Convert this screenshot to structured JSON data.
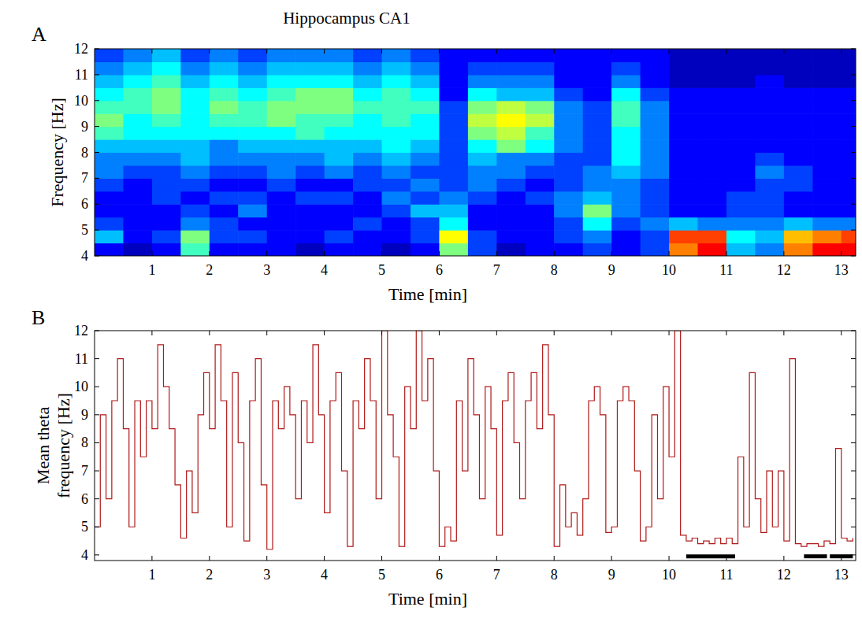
{
  "chart_data": [
    {
      "type": "heatmap",
      "panel": "A",
      "title": "Hippocampus CA1",
      "x_label": "Time [min]",
      "y_label": "Frequency [Hz]",
      "xlim": [
        0,
        13.25
      ],
      "ylim": [
        4,
        12
      ],
      "xticks": [
        1,
        2,
        3,
        4,
        5,
        6,
        7,
        8,
        9,
        10,
        11,
        12,
        13
      ],
      "yticks": [
        4,
        5,
        6,
        7,
        8,
        9,
        10,
        11,
        12
      ],
      "zlim": [
        0.2,
        1.0
      ],
      "x_bins": [
        0,
        0.5,
        1,
        1.5,
        2,
        2.5,
        3,
        3.5,
        4,
        4.5,
        5,
        5.5,
        6,
        6.5,
        7,
        7.5,
        8,
        8.5,
        9,
        9.5,
        10,
        10.5,
        11,
        11.5,
        12,
        12.5,
        13,
        13.25
      ],
      "y_bins": [
        4,
        4.5,
        5,
        5.5,
        6,
        6.5,
        7,
        7.5,
        8,
        8.5,
        9,
        9.5,
        10,
        10.5,
        11,
        11.5,
        12
      ],
      "z": [
        [
          0.3,
          0.25,
          0.3,
          0.55,
          0.3,
          0.3,
          0.3,
          0.25,
          0.3,
          0.3,
          0.25,
          0.3,
          0.6,
          0.35,
          0.25,
          0.3,
          0.3,
          0.35,
          0.3,
          0.35,
          0.8,
          0.9,
          0.45,
          0.4,
          0.8,
          0.9,
          0.9
        ],
        [
          0.45,
          0.3,
          0.35,
          0.6,
          0.35,
          0.35,
          0.3,
          0.3,
          0.35,
          0.3,
          0.3,
          0.35,
          0.7,
          0.35,
          0.3,
          0.3,
          0.35,
          0.4,
          0.3,
          0.35,
          0.85,
          0.85,
          0.5,
          0.45,
          0.75,
          0.8,
          0.85
        ],
        [
          0.35,
          0.3,
          0.3,
          0.4,
          0.35,
          0.3,
          0.3,
          0.3,
          0.3,
          0.35,
          0.3,
          0.35,
          0.5,
          0.3,
          0.3,
          0.3,
          0.35,
          0.5,
          0.35,
          0.4,
          0.45,
          0.4,
          0.4,
          0.4,
          0.45,
          0.4,
          0.4
        ],
        [
          0.3,
          0.3,
          0.3,
          0.35,
          0.3,
          0.4,
          0.3,
          0.3,
          0.3,
          0.3,
          0.35,
          0.45,
          0.45,
          0.3,
          0.3,
          0.3,
          0.4,
          0.6,
          0.4,
          0.35,
          0.3,
          0.3,
          0.35,
          0.35,
          0.3,
          0.3,
          0.3
        ],
        [
          0.3,
          0.3,
          0.35,
          0.3,
          0.35,
          0.35,
          0.3,
          0.35,
          0.35,
          0.3,
          0.4,
          0.35,
          0.4,
          0.35,
          0.3,
          0.35,
          0.4,
          0.45,
          0.4,
          0.35,
          0.3,
          0.3,
          0.35,
          0.35,
          0.3,
          0.3,
          0.3
        ],
        [
          0.35,
          0.3,
          0.35,
          0.35,
          0.3,
          0.3,
          0.35,
          0.3,
          0.3,
          0.35,
          0.35,
          0.4,
          0.35,
          0.4,
          0.35,
          0.3,
          0.35,
          0.4,
          0.4,
          0.35,
          0.3,
          0.3,
          0.3,
          0.35,
          0.35,
          0.3,
          0.3
        ],
        [
          0.4,
          0.35,
          0.35,
          0.4,
          0.35,
          0.35,
          0.4,
          0.35,
          0.4,
          0.35,
          0.4,
          0.35,
          0.35,
          0.4,
          0.4,
          0.35,
          0.35,
          0.4,
          0.45,
          0.4,
          0.3,
          0.3,
          0.3,
          0.4,
          0.35,
          0.3,
          0.3
        ],
        [
          0.4,
          0.4,
          0.4,
          0.45,
          0.4,
          0.4,
          0.4,
          0.4,
          0.45,
          0.4,
          0.45,
          0.4,
          0.35,
          0.45,
          0.4,
          0.4,
          0.35,
          0.35,
          0.5,
          0.4,
          0.3,
          0.3,
          0.3,
          0.35,
          0.3,
          0.3,
          0.3
        ],
        [
          0.45,
          0.45,
          0.45,
          0.45,
          0.4,
          0.45,
          0.45,
          0.45,
          0.45,
          0.45,
          0.5,
          0.45,
          0.35,
          0.5,
          0.6,
          0.5,
          0.4,
          0.35,
          0.5,
          0.4,
          0.3,
          0.3,
          0.3,
          0.3,
          0.3,
          0.3,
          0.3
        ],
        [
          0.55,
          0.5,
          0.5,
          0.5,
          0.5,
          0.5,
          0.5,
          0.55,
          0.5,
          0.5,
          0.5,
          0.5,
          0.35,
          0.6,
          0.65,
          0.55,
          0.4,
          0.35,
          0.5,
          0.4,
          0.3,
          0.3,
          0.3,
          0.3,
          0.3,
          0.3,
          0.3
        ],
        [
          0.6,
          0.5,
          0.55,
          0.5,
          0.55,
          0.55,
          0.6,
          0.55,
          0.55,
          0.5,
          0.55,
          0.5,
          0.35,
          0.65,
          0.7,
          0.65,
          0.4,
          0.35,
          0.55,
          0.4,
          0.3,
          0.3,
          0.3,
          0.3,
          0.3,
          0.3,
          0.3
        ],
        [
          0.55,
          0.55,
          0.6,
          0.5,
          0.6,
          0.55,
          0.6,
          0.6,
          0.6,
          0.55,
          0.55,
          0.55,
          0.35,
          0.6,
          0.65,
          0.6,
          0.4,
          0.35,
          0.55,
          0.4,
          0.3,
          0.3,
          0.3,
          0.3,
          0.3,
          0.3,
          0.3
        ],
        [
          0.5,
          0.55,
          0.6,
          0.5,
          0.55,
          0.5,
          0.55,
          0.6,
          0.6,
          0.5,
          0.55,
          0.5,
          0.3,
          0.5,
          0.45,
          0.45,
          0.35,
          0.3,
          0.5,
          0.35,
          0.3,
          0.3,
          0.3,
          0.3,
          0.3,
          0.3,
          0.3
        ],
        [
          0.45,
          0.5,
          0.55,
          0.45,
          0.5,
          0.45,
          0.5,
          0.5,
          0.5,
          0.45,
          0.5,
          0.45,
          0.3,
          0.4,
          0.4,
          0.4,
          0.3,
          0.3,
          0.4,
          0.3,
          0.25,
          0.25,
          0.25,
          0.3,
          0.25,
          0.25,
          0.25
        ],
        [
          0.4,
          0.45,
          0.5,
          0.4,
          0.45,
          0.4,
          0.45,
          0.45,
          0.45,
          0.4,
          0.45,
          0.4,
          0.3,
          0.35,
          0.35,
          0.35,
          0.3,
          0.3,
          0.35,
          0.3,
          0.25,
          0.25,
          0.25,
          0.25,
          0.25,
          0.25,
          0.25
        ],
        [
          0.35,
          0.4,
          0.45,
          0.35,
          0.4,
          0.35,
          0.4,
          0.4,
          0.4,
          0.35,
          0.4,
          0.35,
          0.3,
          0.3,
          0.3,
          0.3,
          0.3,
          0.3,
          0.3,
          0.3,
          0.25,
          0.25,
          0.25,
          0.25,
          0.25,
          0.25,
          0.25
        ]
      ]
    },
    {
      "type": "line",
      "panel": "B",
      "x_label": "Time [min]",
      "y_label": "Mean theta frequency [Hz]",
      "xlim": [
        0,
        13.25
      ],
      "ylim": [
        3.8,
        12
      ],
      "xticks": [
        1,
        2,
        3,
        4,
        5,
        6,
        7,
        8,
        9,
        10,
        11,
        12,
        13
      ],
      "yticks": [
        4,
        5,
        6,
        7,
        8,
        9,
        10,
        11,
        12
      ],
      "x": [
        0,
        0.1,
        0.2,
        0.3,
        0.4,
        0.5,
        0.6,
        0.7,
        0.8,
        0.9,
        1,
        1.1,
        1.2,
        1.3,
        1.4,
        1.5,
        1.6,
        1.7,
        1.8,
        1.9,
        2,
        2.1,
        2.2,
        2.3,
        2.4,
        2.5,
        2.6,
        2.7,
        2.8,
        2.9,
        3,
        3.1,
        3.2,
        3.3,
        3.4,
        3.5,
        3.6,
        3.7,
        3.8,
        3.9,
        4,
        4.1,
        4.2,
        4.3,
        4.4,
        4.5,
        4.6,
        4.7,
        4.8,
        4.9,
        5,
        5.1,
        5.2,
        5.3,
        5.4,
        5.5,
        5.6,
        5.7,
        5.8,
        5.9,
        6,
        6.1,
        6.2,
        6.3,
        6.4,
        6.5,
        6.6,
        6.7,
        6.8,
        6.9,
        7,
        7.1,
        7.2,
        7.3,
        7.4,
        7.5,
        7.6,
        7.7,
        7.8,
        7.9,
        8,
        8.1,
        8.2,
        8.3,
        8.4,
        8.5,
        8.6,
        8.7,
        8.8,
        8.9,
        9,
        9.1,
        9.2,
        9.3,
        9.4,
        9.5,
        9.6,
        9.7,
        9.8,
        9.9,
        10,
        10.1,
        10.2,
        10.3,
        10.4,
        10.5,
        10.6,
        10.7,
        10.8,
        10.9,
        11,
        11.1,
        11.2,
        11.3,
        11.4,
        11.5,
        11.6,
        11.7,
        11.8,
        11.9,
        12,
        12.1,
        12.2,
        12.3,
        12.4,
        12.5,
        12.6,
        12.7,
        12.8,
        12.9,
        13,
        13.1,
        13.2
      ],
      "series": [
        {
          "color": "#b01818",
          "line_style": "steps",
          "values": [
            5.0,
            9.0,
            6.0,
            9.5,
            11.0,
            8.5,
            5.0,
            9.5,
            7.5,
            9.5,
            8.5,
            11.5,
            10.0,
            8.5,
            6.5,
            4.6,
            7.0,
            5.5,
            9.0,
            10.5,
            8.5,
            11.5,
            9.5,
            5.0,
            10.5,
            8.0,
            4.5,
            9.5,
            11.0,
            6.5,
            4.2,
            9.5,
            8.5,
            10.0,
            9.0,
            6.0,
            9.5,
            8.0,
            11.5,
            9.0,
            5.5,
            9.5,
            10.5,
            7.0,
            4.3,
            9.5,
            8.5,
            11.0,
            9.5,
            6.0,
            12.0,
            9.0,
            7.5,
            4.3,
            10.0,
            8.5,
            12.0,
            9.5,
            11.0,
            7.0,
            4.3,
            5.0,
            4.5,
            9.5,
            7.0,
            11.0,
            9.0,
            6.0,
            10.0,
            8.5,
            4.7,
            9.5,
            10.5,
            8.0,
            6.0,
            9.5,
            10.5,
            8.5,
            11.5,
            9.0,
            4.3,
            6.5,
            5.0,
            5.5,
            4.7,
            6.0,
            9.5,
            10.0,
            9.0,
            4.8,
            5.0,
            9.5,
            10.0,
            9.5,
            7.0,
            4.5,
            5.0,
            9.0,
            6.0,
            10.0,
            7.5,
            12.0,
            4.7,
            4.5,
            4.6,
            4.4,
            4.5,
            4.4,
            4.6,
            4.4,
            4.6,
            4.4,
            7.5,
            5.0,
            10.5,
            6.0,
            4.8,
            7.0,
            5.0,
            7.0,
            4.5,
            11.0,
            4.4,
            4.3,
            4.4,
            4.4,
            4.3,
            4.5,
            4.4,
            7.8,
            4.6,
            4.5,
            4.6
          ]
        }
      ],
      "intervals": [
        [
          10.3,
          11.15
        ],
        [
          12.35,
          12.75
        ],
        [
          12.8,
          13.2
        ]
      ],
      "interval_y": 3.95,
      "interval_color": "#000000"
    }
  ]
}
